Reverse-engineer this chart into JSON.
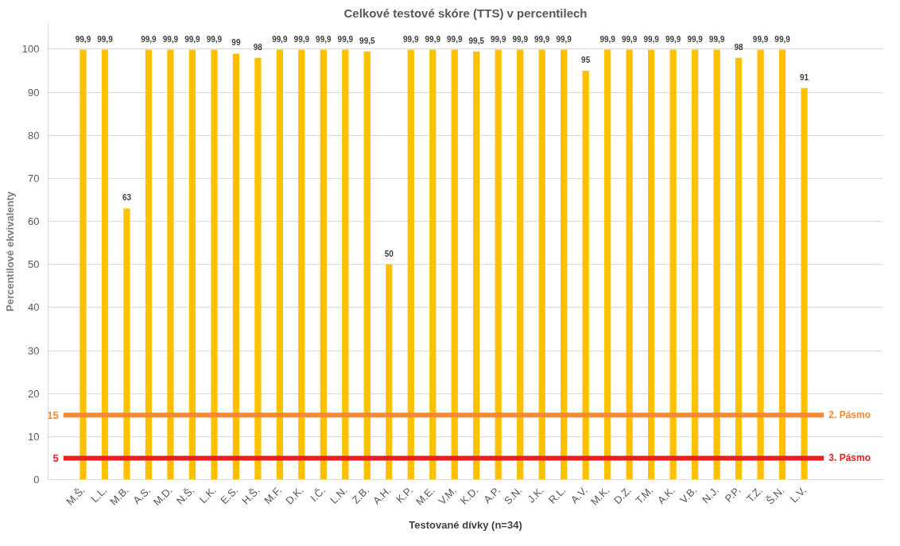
{
  "chart_data": {
    "type": "bar",
    "title": "Celkové testové skóre (TTS) v percentilech",
    "xlabel": "Testované dívky (n=34)",
    "ylabel": "Percentilové ekvivalenty",
    "categories": [
      "M.Š.",
      "L.L.",
      "M.B.",
      "A.S.",
      "M.D.",
      "N.Š.",
      "L.K.",
      "E.S.",
      "H.Š.",
      "M.F.",
      "D.K.",
      "I.Č.",
      "L.N.",
      "Z.B.",
      "A.H.",
      "K.P.",
      "M.E.",
      "V.M.",
      "K.D.",
      "A.P.",
      "S.N.",
      "J.K.",
      "R.L.",
      "A.V.",
      "M.K.",
      "D.Z.",
      "T.M.",
      "A.K.",
      "V.B.",
      "N.J.",
      "P.P.",
      "T.Z.",
      "Š.N.",
      "L.V."
    ],
    "values": [
      99.9,
      99.9,
      63,
      99.9,
      99.9,
      99.9,
      99.9,
      99,
      98,
      99.9,
      99.9,
      99.9,
      99.9,
      99.5,
      50,
      99.9,
      99.9,
      99.9,
      99.5,
      99.9,
      99.9,
      99.9,
      99.9,
      95,
      99.9,
      99.9,
      99.9,
      99.9,
      99.9,
      99.9,
      98,
      99.9,
      99.9,
      91
    ],
    "value_labels": [
      "99,9",
      "99,9",
      "63",
      "99,9",
      "99,9",
      "99,9",
      "99,9",
      "99",
      "98",
      "99,9",
      "99,9",
      "99,9",
      "99,9",
      "99,5",
      "50",
      "99,9",
      "99,9",
      "99,9",
      "99,5",
      "99,9",
      "99,9",
      "99,9",
      "99,9",
      "95",
      "99,9",
      "99,9",
      "99,9",
      "99,9",
      "99,9",
      "99,9",
      "98",
      "99,9",
      "99,9",
      "91"
    ],
    "color": "#ffc000",
    "ylim": [
      0,
      106
    ],
    "yticks": [
      0,
      10,
      20,
      30,
      40,
      50,
      60,
      70,
      80,
      90,
      100
    ],
    "grid": "y",
    "ref_lines": [
      {
        "axis": "y",
        "value": 15,
        "label": "2. Pásmo",
        "color": "#f58a33"
      },
      {
        "axis": "y",
        "value": 5,
        "label": "3. Pásmo",
        "color": "#e5211f"
      }
    ],
    "annotations": [
      "15",
      "5"
    ]
  }
}
